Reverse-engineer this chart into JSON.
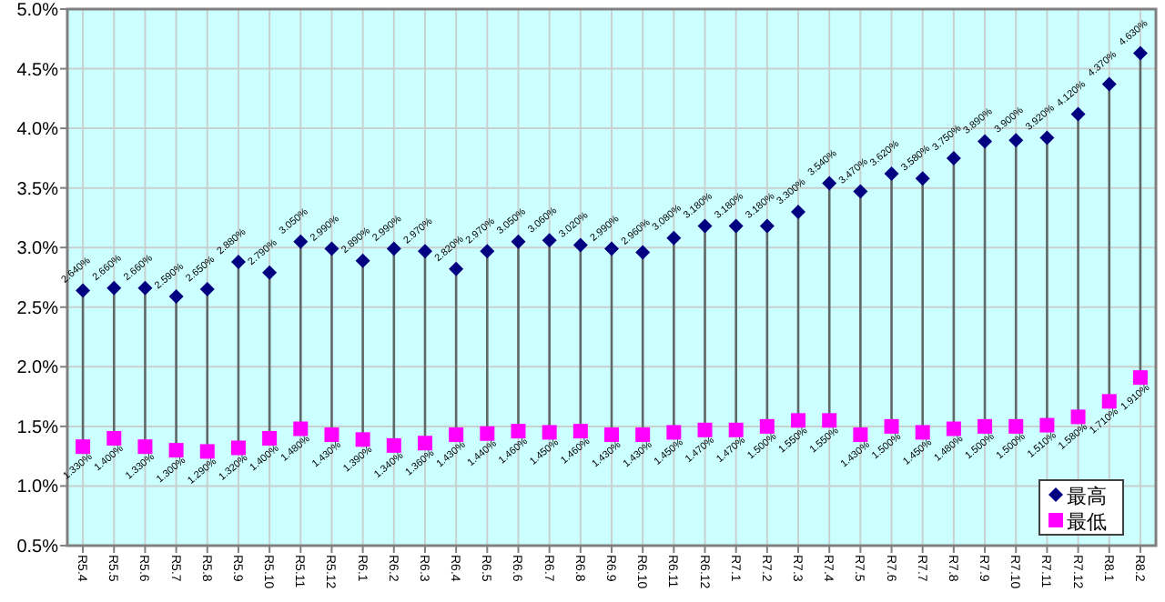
{
  "chart_data": {
    "type": "scatter",
    "categories": [
      "R5.4",
      "R5.5",
      "R5.6",
      "R5.7",
      "R5.8",
      "R5.9",
      "R5.10",
      "R5.11",
      "R5.12",
      "R6.1",
      "R6.2",
      "R6.3",
      "R6.4",
      "R6.5",
      "R6.6",
      "R6.7",
      "R6.8",
      "R6.9",
      "R6.10",
      "R6.11",
      "R6.12",
      "R7.1",
      "R7.2",
      "R7.3",
      "R7.4",
      "R7.5",
      "R7.6",
      "R7.7",
      "R7.8",
      "R7.9",
      "R7.10",
      "R7.11",
      "R7.12",
      "R8.1",
      "R8.2"
    ],
    "series": [
      {
        "name": "最高",
        "color": "#000080",
        "marker": "diamond",
        "values": [
          2.64,
          2.66,
          2.66,
          2.59,
          2.65,
          2.88,
          2.79,
          3.05,
          2.99,
          2.89,
          2.99,
          2.97,
          2.82,
          2.97,
          3.05,
          3.06,
          3.02,
          2.99,
          2.96,
          3.08,
          3.18,
          3.18,
          3.18,
          3.3,
          3.54,
          3.47,
          3.62,
          3.58,
          3.75,
          3.89,
          3.9,
          3.92,
          4.12,
          4.37,
          4.63
        ],
        "value_labels": [
          "2.640%",
          "2.660%",
          "2.660%",
          "2.590%",
          "2.650%",
          "2.880%",
          "2.790%",
          "3.050%",
          "2.990%",
          "2.890%",
          "2.990%",
          "2.970%",
          "2.820%",
          "2.970%",
          "3.050%",
          "3.060%",
          "3.020%",
          "2.990%",
          "2.960%",
          "3.080%",
          "3.180%",
          "3.180%",
          "3.180%",
          "3.300%",
          "3.540%",
          "3.470%",
          "3.620%",
          "3.580%",
          "3.750%",
          "3.890%",
          "3.900%",
          "3.920%",
          "4.120%",
          "4.370%",
          "4.630%"
        ]
      },
      {
        "name": "最低",
        "color": "#ff00ff",
        "marker": "square",
        "values": [
          1.33,
          1.4,
          1.33,
          1.3,
          1.29,
          1.32,
          1.4,
          1.48,
          1.43,
          1.39,
          1.34,
          1.36,
          1.43,
          1.44,
          1.46,
          1.45,
          1.46,
          1.43,
          1.43,
          1.45,
          1.47,
          1.47,
          1.5,
          1.55,
          1.55,
          1.43,
          1.5,
          1.45,
          1.48,
          1.5,
          1.5,
          1.51,
          1.58,
          1.71,
          1.91
        ],
        "value_labels": [
          "1.330%",
          "1.400%",
          "1.330%",
          "1.300%",
          "1.290%",
          "1.320%",
          "1.400%",
          "1.480%",
          "1.430%",
          "1.390%",
          "1.340%",
          "1.360%",
          "1.430%",
          "1.440%",
          "1.460%",
          "1.450%",
          "1.460%",
          "1.430%",
          "1.430%",
          "1.450%",
          "1.470%",
          "1.470%",
          "1.500%",
          "1.550%",
          "1.550%",
          "1.430%",
          "1.500%",
          "1.450%",
          "1.480%",
          "1.500%",
          "1.500%",
          "1.510%",
          "1.580%",
          "1.710%",
          "1.910%"
        ]
      }
    ],
    "ylim": [
      0.5,
      5.0
    ],
    "yticks": [
      {
        "value": 0.5,
        "label": "0.5%"
      },
      {
        "value": 1.0,
        "label": "1.0%"
      },
      {
        "value": 1.5,
        "label": "1.5%"
      },
      {
        "value": 2.0,
        "label": "2.0%"
      },
      {
        "value": 2.5,
        "label": "2.5%"
      },
      {
        "value": 3.0,
        "label": "3.0%"
      },
      {
        "value": 3.5,
        "label": "3.5%"
      },
      {
        "value": 4.0,
        "label": "4.0%"
      },
      {
        "value": 4.5,
        "label": "4.5%"
      },
      {
        "value": 5.0,
        "label": "5.0%"
      }
    ],
    "grid": true,
    "legend": "bottom right"
  }
}
